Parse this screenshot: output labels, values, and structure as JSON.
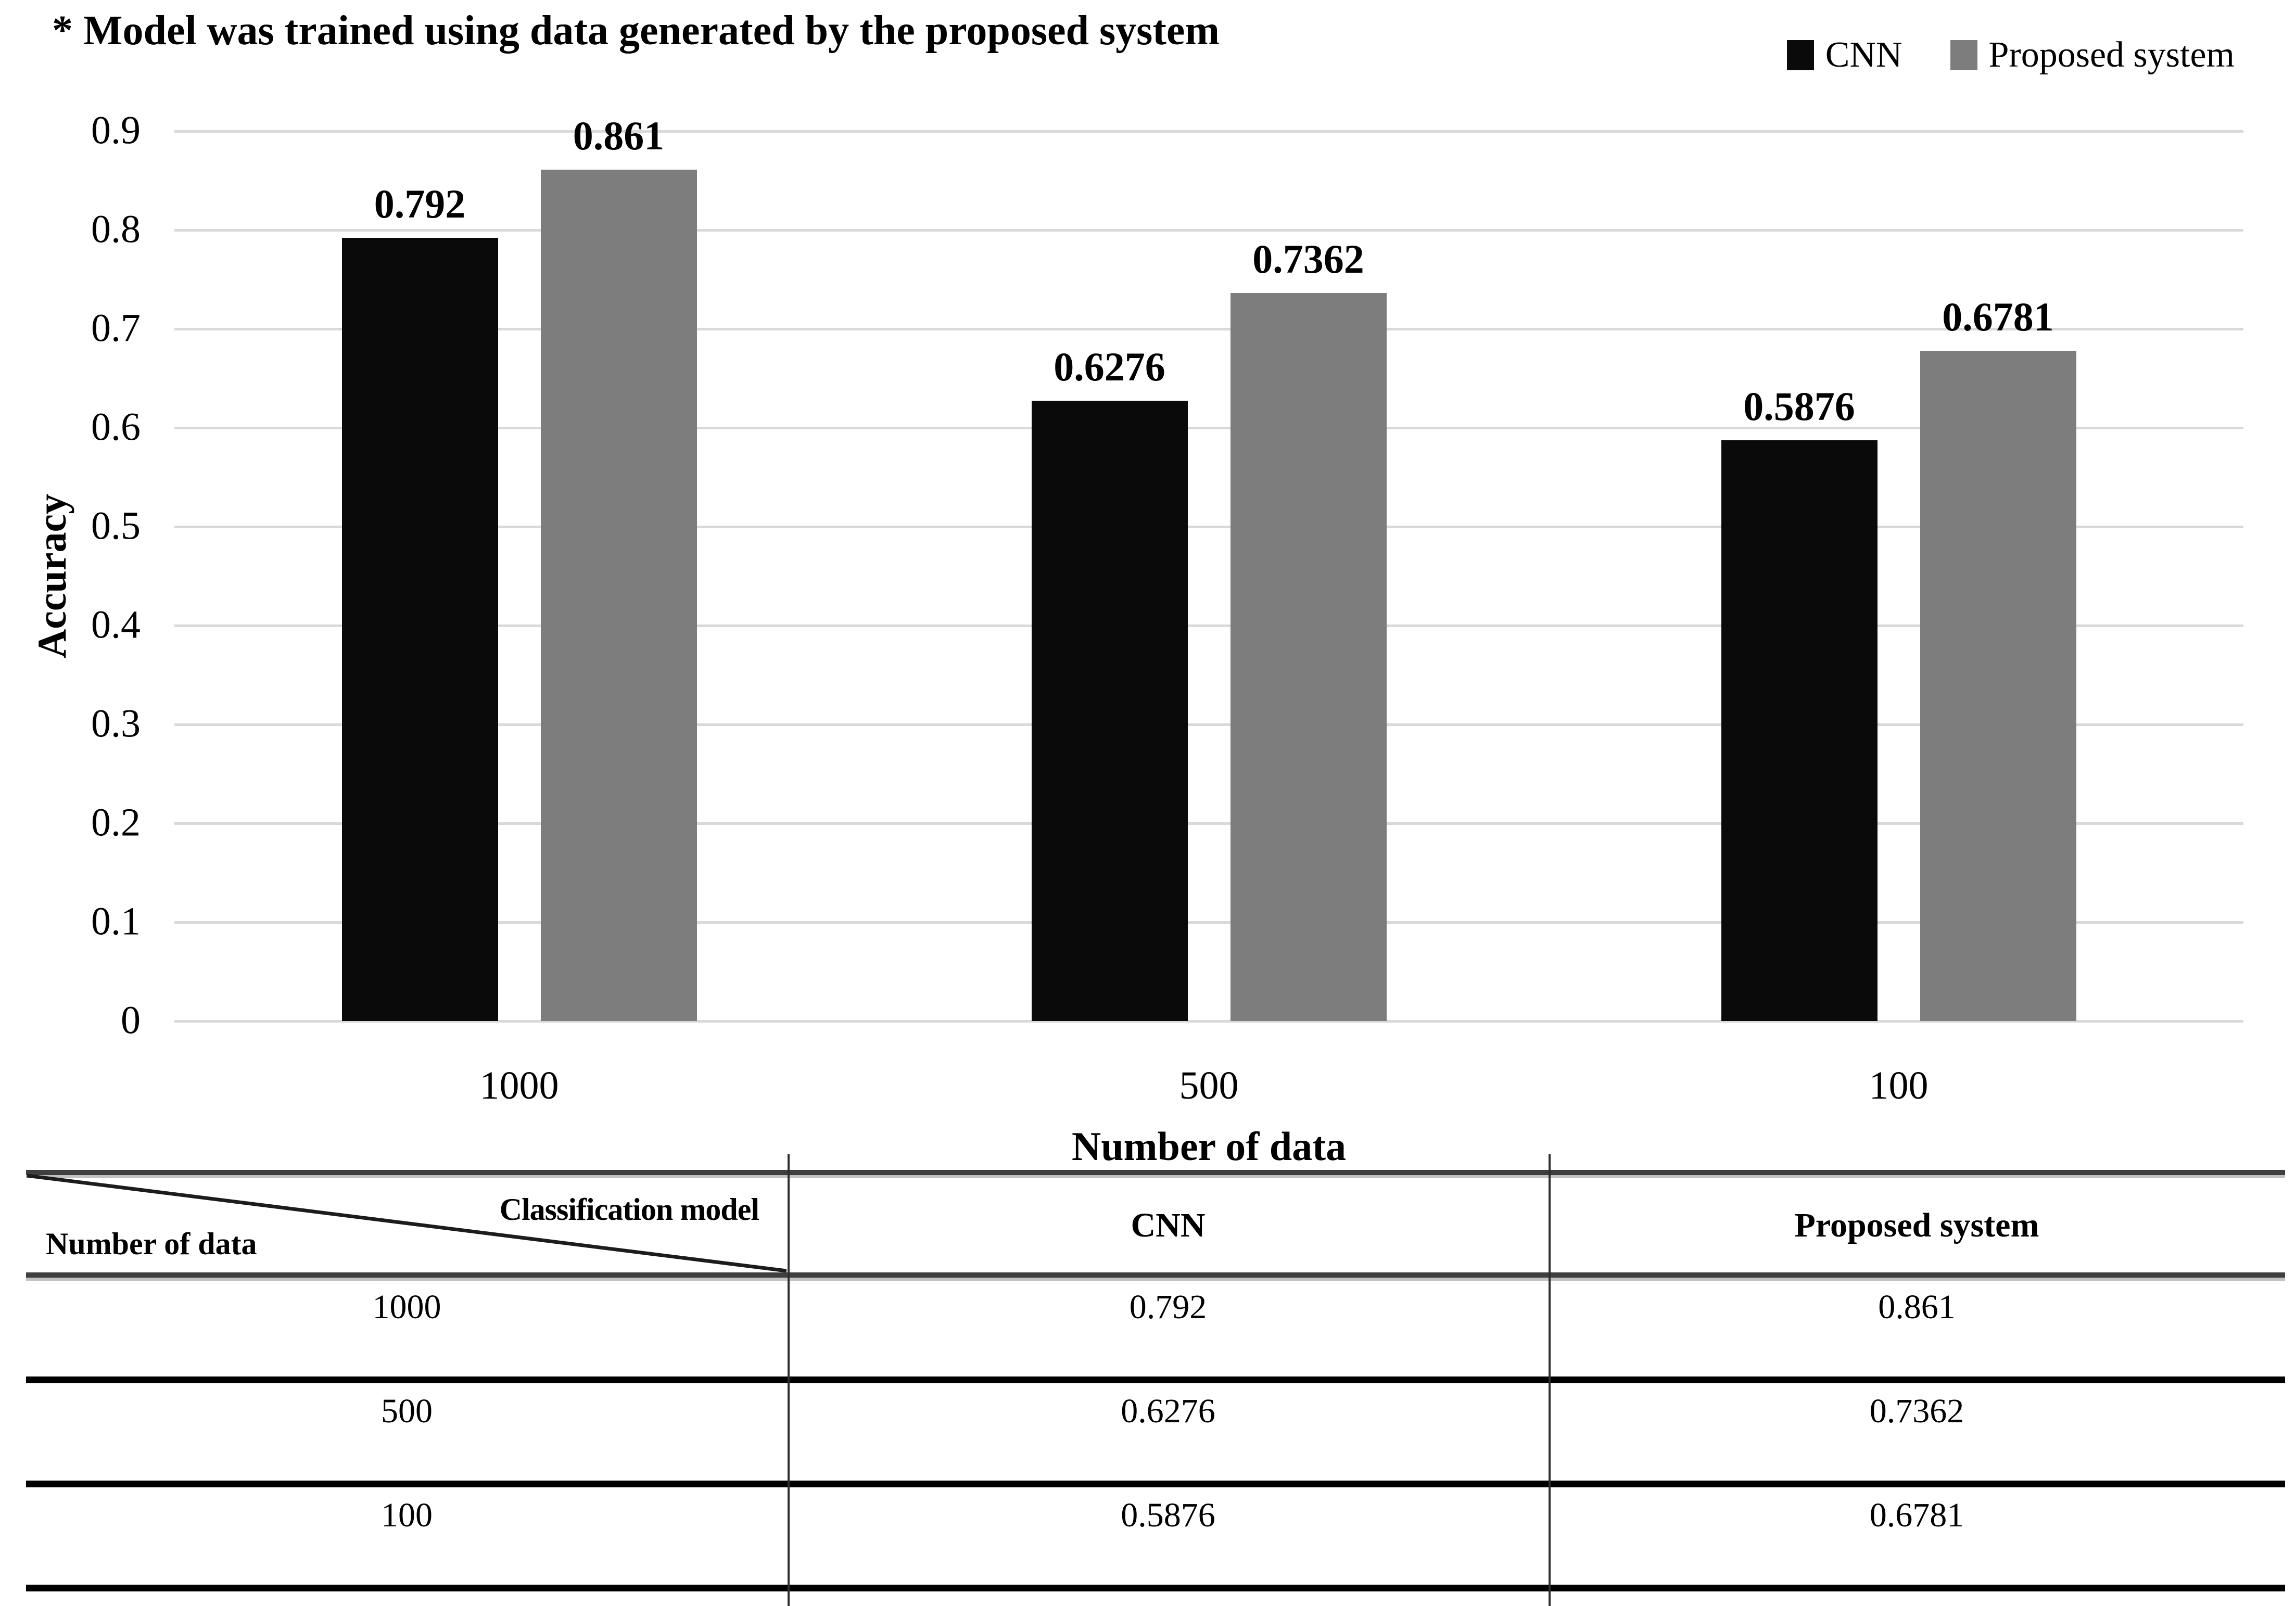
{
  "note": "* Model was trained using data generated by the proposed system",
  "colors": {
    "cnn_bar": "#0a0a0a",
    "proposed_bar": "#7d7d7d",
    "gridline": "#d9d9d9",
    "table_border_dark": "#3f3f3f",
    "table_border_light": "#c2c2c2",
    "table_border_black": "#000000"
  },
  "chart_data": {
    "type": "bar",
    "title": "",
    "categories": [
      "1000",
      "500",
      "100"
    ],
    "series": [
      {
        "name": "CNN",
        "color": "#0a0a0a",
        "values": [
          0.792,
          0.6276,
          0.5876
        ],
        "labels": [
          "0.792",
          "0.6276",
          "0.5876"
        ]
      },
      {
        "name": "Proposed system",
        "color": "#7d7d7d",
        "values": [
          0.861,
          0.7362,
          0.6781
        ],
        "labels": [
          "0.861",
          "0.7362",
          "0.6781"
        ]
      }
    ],
    "xlabel": "Number of data",
    "ylabel": "Accuracy",
    "ylim": [
      0,
      0.9
    ],
    "yticks": [
      0.9,
      0.8,
      0.7,
      0.6,
      0.5,
      0.4,
      0.3,
      0.2,
      0.1,
      0
    ],
    "ytick_labels": [
      "0.9",
      "0.8",
      "0.7",
      "0.6",
      "0.5",
      "0.4",
      "0.3",
      "0.2",
      "0.1",
      "0"
    ],
    "grid": true,
    "legend_position": "top-right"
  },
  "table": {
    "corner": {
      "top_right": "Classification model",
      "bottom_left": "Number of data"
    },
    "col_headers": [
      "CNN",
      "Proposed system"
    ],
    "rows": [
      {
        "number_of_data": "1000",
        "cnn": "0.792",
        "proposed_system": "0.861"
      },
      {
        "number_of_data": "500",
        "cnn": "0.6276",
        "proposed_system": "0.7362"
      },
      {
        "number_of_data": "100",
        "cnn": "0.5876",
        "proposed_system": "0.6781"
      }
    ]
  }
}
